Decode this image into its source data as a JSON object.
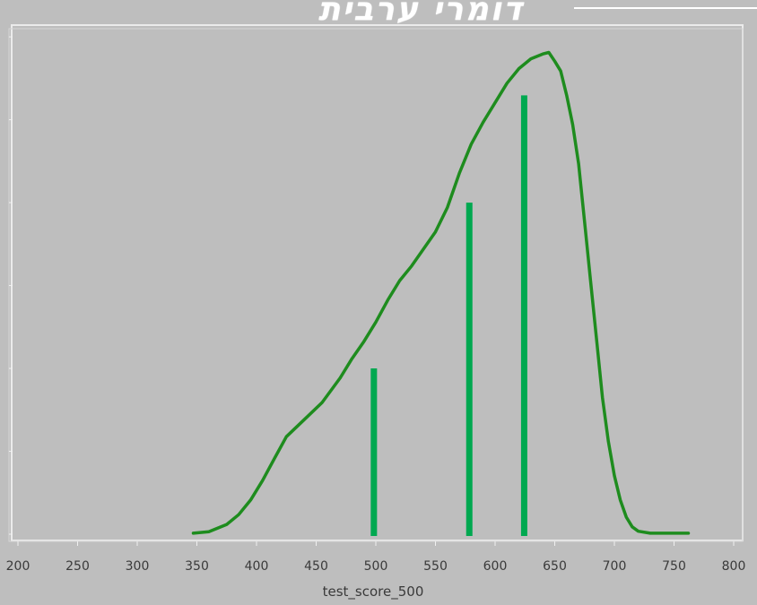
{
  "chart_data": {
    "type": "bar",
    "title": "דומרי ערבית",
    "xlabel": "test_score_500",
    "ylabel": "",
    "xlim": [
      200,
      800
    ],
    "ylim": [
      0,
      100
    ],
    "x_ticks": [
      "200",
      "250",
      "300",
      "350",
      "400",
      "450",
      "500",
      "550",
      "600",
      "650",
      "700",
      "750",
      "800"
    ],
    "bars": [
      {
        "x": 498,
        "value": 34
      },
      {
        "x": 578,
        "value": 68
      },
      {
        "x": 624,
        "value": 90
      }
    ],
    "density_curve": [
      [
        347,
        0.2
      ],
      [
        360,
        0.5
      ],
      [
        375,
        2
      ],
      [
        385,
        4
      ],
      [
        395,
        7
      ],
      [
        405,
        11
      ],
      [
        415,
        15.5
      ],
      [
        425,
        20
      ],
      [
        440,
        23.5
      ],
      [
        455,
        27
      ],
      [
        470,
        32
      ],
      [
        480,
        36
      ],
      [
        490,
        39.5
      ],
      [
        500,
        43.5
      ],
      [
        510,
        48
      ],
      [
        520,
        52
      ],
      [
        530,
        55
      ],
      [
        540,
        58.5
      ],
      [
        550,
        62
      ],
      [
        560,
        67
      ],
      [
        570,
        74
      ],
      [
        580,
        80
      ],
      [
        590,
        84.5
      ],
      [
        600,
        88.5
      ],
      [
        610,
        92.5
      ],
      [
        620,
        95.5
      ],
      [
        630,
        97.5
      ],
      [
        640,
        98.5
      ],
      [
        645,
        98.8
      ],
      [
        650,
        97
      ],
      [
        655,
        95
      ],
      [
        660,
        90
      ],
      [
        665,
        84
      ],
      [
        670,
        76
      ],
      [
        675,
        64
      ],
      [
        680,
        52
      ],
      [
        685,
        40
      ],
      [
        690,
        28
      ],
      [
        695,
        19
      ],
      [
        700,
        12
      ],
      [
        705,
        7
      ],
      [
        710,
        3.5
      ],
      [
        715,
        1.5
      ],
      [
        720,
        0.6
      ],
      [
        730,
        0.2
      ],
      [
        745,
        0.2
      ],
      [
        762,
        0.2
      ]
    ],
    "colors": {
      "background": "#bebebe",
      "frame": "#ebebeb",
      "bar": "#00a850",
      "curve": "#1e8c1e"
    },
    "grid": false
  }
}
